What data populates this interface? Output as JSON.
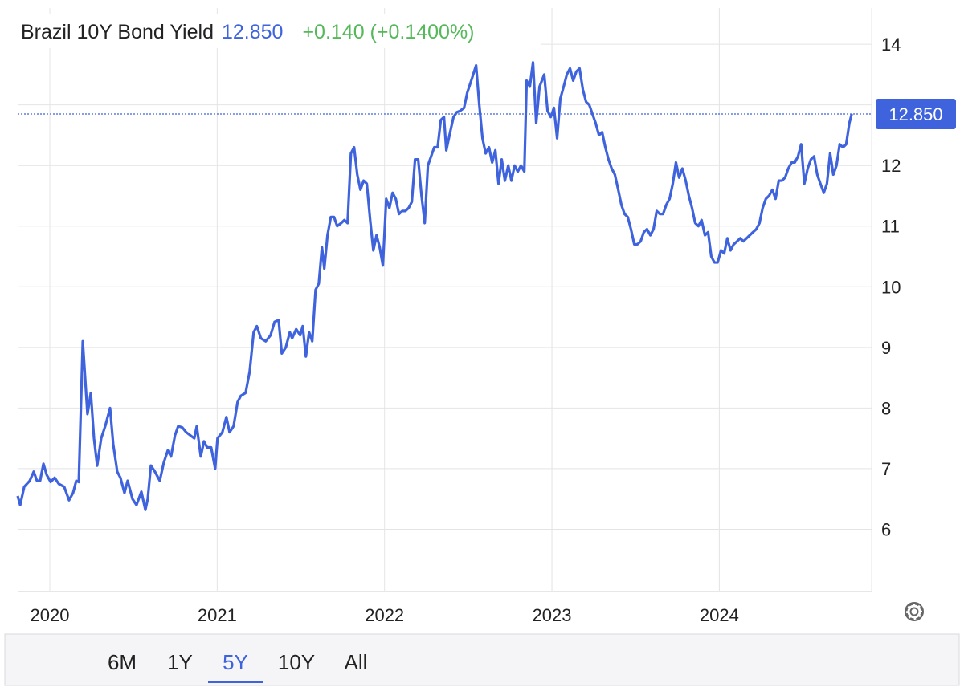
{
  "chart_data": {
    "type": "line",
    "title": "Brazil 10Y Bond Yield",
    "current_value": "12.850",
    "change": "+0.140 (+0.1400%)",
    "color": "#3e63dd",
    "xlim": [
      2019.808,
      2024.91
    ],
    "xticks": [
      2020,
      2021,
      2022,
      2023,
      2024
    ],
    "ylim": [
      5,
      14.2
    ],
    "yticks": [
      6,
      7,
      8,
      9,
      10,
      11,
      12,
      13,
      14
    ],
    "grid": true,
    "ranges": [
      "6M",
      "1Y",
      "5Y",
      "10Y",
      "All"
    ],
    "active_range": "5Y",
    "x": [
      2019.808,
      2019.823,
      2019.847,
      2019.88,
      2019.904,
      2019.923,
      2019.942,
      2019.962,
      2019.981,
      2020.005,
      2020.029,
      2020.053,
      2020.086,
      2020.115,
      2020.139,
      2020.158,
      2020.173,
      2020.197,
      2020.225,
      2020.245,
      2020.264,
      2020.283,
      2020.307,
      2020.331,
      2020.36,
      2020.379,
      2020.403,
      2020.422,
      2020.446,
      2020.465,
      2020.494,
      2020.518,
      2020.547,
      2020.571,
      2020.585,
      2020.604,
      2020.628,
      2020.657,
      2020.681,
      2020.705,
      2020.724,
      2020.748,
      2020.767,
      2020.791,
      2020.815,
      2020.839,
      2020.863,
      2020.878,
      2020.902,
      2020.921,
      2020.94,
      2020.964,
      2020.988,
      2021.002,
      2021.031,
      2021.055,
      2021.074,
      2021.098,
      2021.122,
      2021.141,
      2021.17,
      2021.194,
      2021.218,
      2021.237,
      2021.261,
      2021.29,
      2021.319,
      2021.343,
      2021.367,
      2021.386,
      2021.41,
      2021.434,
      2021.448,
      2021.472,
      2021.496,
      2021.511,
      2021.53,
      2021.549,
      2021.568,
      2021.588,
      2021.607,
      2021.626,
      2021.64,
      2021.659,
      2021.679,
      2021.698,
      2021.717,
      2021.741,
      2021.76,
      2021.779,
      2021.799,
      2021.818,
      2021.837,
      2021.856,
      2021.875,
      2021.894,
      2021.914,
      2021.933,
      2021.952,
      2021.971,
      2021.99,
      2022.01,
      2022.029,
      2022.048,
      2022.067,
      2022.086,
      2022.106,
      2022.125,
      2022.144,
      2022.163,
      2022.182,
      2022.201,
      2022.221,
      2022.24,
      2022.259,
      2022.278,
      2022.297,
      2022.317,
      2022.336,
      2022.355,
      2022.369,
      2022.388,
      2022.412,
      2022.432,
      2022.451,
      2022.475,
      2022.494,
      2022.518,
      2022.547,
      2022.566,
      2022.585,
      2022.604,
      2022.624,
      2022.643,
      2022.662,
      2022.681,
      2022.7,
      2022.719,
      2022.739,
      2022.758,
      2022.777,
      2022.796,
      2022.815,
      2022.835,
      2022.849,
      2022.868,
      2022.887,
      2022.906,
      2022.926,
      2022.954,
      2022.974,
      2022.993,
      2023.012,
      2023.031,
      2023.05,
      2023.07,
      2023.089,
      2023.108,
      2023.127,
      2023.146,
      2023.165,
      2023.185,
      2023.204,
      2023.223,
      2023.242,
      2023.261,
      2023.281,
      2023.3,
      2023.319,
      2023.338,
      2023.357,
      2023.376,
      2023.396,
      2023.415,
      2023.434,
      2023.453,
      2023.472,
      2023.492,
      2023.511,
      2023.53,
      2023.549,
      2023.568,
      2023.588,
      2023.607,
      2023.626,
      2023.645,
      2023.664,
      2023.683,
      2023.703,
      2023.722,
      2023.741,
      2023.76,
      2023.779,
      2023.799,
      2023.818,
      2023.837,
      2023.856,
      2023.875,
      2023.894,
      2023.914,
      2023.933,
      2023.952,
      2023.971,
      2023.99,
      2024.01,
      2024.029,
      2024.048,
      2024.067,
      2024.086,
      2024.106,
      2024.125,
      2024.144,
      2024.163,
      2024.182,
      2024.201,
      2024.221,
      2024.24,
      2024.259,
      2024.278,
      2024.297,
      2024.317,
      2024.336,
      2024.355,
      2024.374,
      2024.393,
      2024.412,
      2024.432,
      2024.451,
      2024.47,
      2024.489,
      2024.508,
      2024.528,
      2024.547,
      2024.566,
      2024.585,
      2024.604,
      2024.624,
      2024.643,
      2024.662,
      2024.681,
      2024.7,
      2024.719,
      2024.739,
      2024.758,
      2024.777,
      2024.791
    ],
    "values": [
      6.55,
      6.4,
      6.7,
      6.8,
      6.95,
      6.8,
      6.8,
      7.08,
      6.9,
      6.78,
      6.85,
      6.75,
      6.7,
      6.48,
      6.6,
      6.8,
      6.78,
      9.1,
      7.9,
      8.25,
      7.5,
      7.05,
      7.5,
      7.7,
      8.0,
      7.4,
      6.95,
      6.85,
      6.6,
      6.8,
      6.5,
      6.4,
      6.62,
      6.32,
      6.5,
      7.05,
      6.95,
      6.8,
      7.1,
      7.3,
      7.2,
      7.55,
      7.7,
      7.68,
      7.6,
      7.55,
      7.5,
      7.7,
      7.2,
      7.45,
      7.35,
      7.35,
      7.0,
      7.5,
      7.6,
      7.85,
      7.6,
      7.7,
      8.1,
      8.2,
      8.25,
      8.6,
      9.25,
      9.35,
      9.15,
      9.1,
      9.2,
      9.42,
      9.45,
      8.9,
      9.0,
      9.25,
      9.15,
      9.3,
      9.2,
      9.35,
      8.85,
      9.25,
      9.1,
      9.95,
      10.05,
      10.65,
      10.3,
      10.85,
      11.15,
      11.15,
      11.0,
      11.05,
      11.1,
      11.05,
      12.2,
      12.3,
      11.85,
      11.6,
      11.75,
      11.7,
      11.1,
      10.6,
      10.85,
      10.65,
      10.35,
      11.45,
      11.3,
      11.55,
      11.45,
      11.2,
      11.25,
      11.25,
      11.3,
      11.4,
      12.1,
      12.1,
      11.5,
      11.05,
      12.0,
      12.15,
      12.3,
      12.3,
      12.75,
      12.8,
      12.25,
      12.5,
      12.8,
      12.88,
      12.9,
      12.95,
      13.2,
      13.4,
      13.65,
      13.0,
      12.45,
      12.2,
      12.3,
      12.05,
      12.25,
      11.7,
      12.1,
      11.75,
      12.0,
      11.75,
      12.0,
      11.9,
      12.0,
      11.9,
      13.4,
      13.3,
      13.7,
      12.7,
      13.3,
      13.5,
      12.9,
      12.8,
      12.95,
      12.45,
      13.1,
      13.3,
      13.5,
      13.6,
      13.4,
      13.55,
      13.6,
      13.25,
      13.05,
      13.0,
      12.85,
      12.7,
      12.5,
      12.55,
      12.3,
      12.1,
      11.95,
      11.85,
      11.6,
      11.35,
      11.2,
      11.15,
      10.95,
      10.7,
      10.7,
      10.75,
      10.9,
      10.95,
      10.85,
      10.95,
      11.25,
      11.2,
      11.2,
      11.35,
      11.45,
      11.7,
      12.05,
      11.8,
      11.95,
      11.75,
      11.5,
      11.3,
      11.05,
      11.0,
      11.1,
      10.85,
      10.9,
      10.5,
      10.4,
      10.4,
      10.6,
      10.55,
      10.8,
      10.6,
      10.7,
      10.75,
      10.8,
      10.75,
      10.8,
      10.85,
      10.9,
      10.95,
      11.05,
      11.3,
      11.45,
      11.5,
      11.6,
      11.45,
      11.75,
      11.75,
      11.8,
      11.95,
      12.05,
      12.05,
      12.15,
      12.35,
      11.7,
      11.95,
      12.1,
      12.15,
      11.85,
      11.7,
      11.55,
      11.7,
      12.2,
      11.85,
      12.0,
      12.35,
      12.3,
      12.35,
      12.7,
      12.85
    ]
  }
}
